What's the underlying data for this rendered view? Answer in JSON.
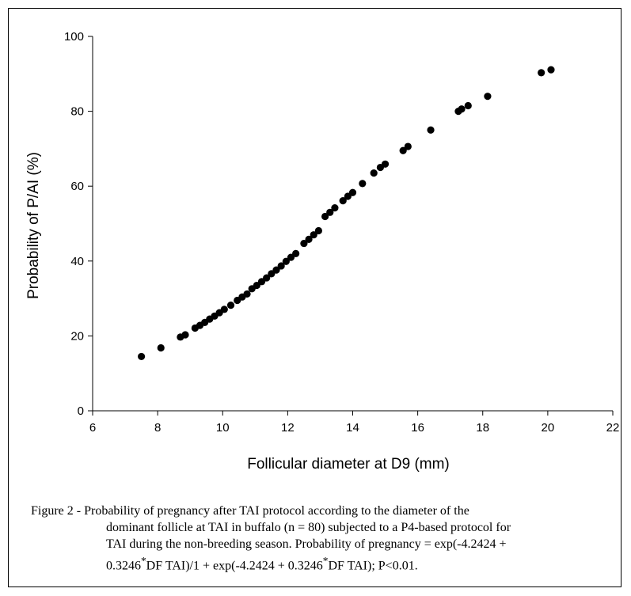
{
  "chart_data": {
    "type": "scatter",
    "title": "",
    "xlabel": "Follicular diameter at D9 (mm)",
    "ylabel": "Probability of P/AI (%)",
    "xlim": [
      6,
      22
    ],
    "ylim": [
      0,
      100
    ],
    "x_ticks": [
      6,
      8,
      10,
      12,
      14,
      16,
      18,
      20,
      22
    ],
    "y_ticks": [
      0,
      20,
      40,
      60,
      80,
      100
    ],
    "grid": false,
    "legend": "none",
    "marker_color": "#000000",
    "points": [
      {
        "x": 7.5,
        "y": 14.5
      },
      {
        "x": 8.1,
        "y": 16.8
      },
      {
        "x": 8.7,
        "y": 19.7
      },
      {
        "x": 8.85,
        "y": 20.3
      },
      {
        "x": 9.15,
        "y": 22.1
      },
      {
        "x": 9.3,
        "y": 22.8
      },
      {
        "x": 9.45,
        "y": 23.6
      },
      {
        "x": 9.6,
        "y": 24.5
      },
      {
        "x": 9.75,
        "y": 25.3
      },
      {
        "x": 9.9,
        "y": 26.2
      },
      {
        "x": 10.05,
        "y": 27.1
      },
      {
        "x": 10.25,
        "y": 28.2
      },
      {
        "x": 10.45,
        "y": 29.5
      },
      {
        "x": 10.6,
        "y": 30.4
      },
      {
        "x": 10.75,
        "y": 31.2
      },
      {
        "x": 10.9,
        "y": 32.6
      },
      {
        "x": 11.05,
        "y": 33.5
      },
      {
        "x": 11.2,
        "y": 34.5
      },
      {
        "x": 11.35,
        "y": 35.5
      },
      {
        "x": 11.5,
        "y": 36.6
      },
      {
        "x": 11.65,
        "y": 37.6
      },
      {
        "x": 11.8,
        "y": 38.7
      },
      {
        "x": 11.95,
        "y": 39.9
      },
      {
        "x": 12.1,
        "y": 41.0
      },
      {
        "x": 12.25,
        "y": 42.0
      },
      {
        "x": 12.5,
        "y": 44.7
      },
      {
        "x": 12.65,
        "y": 45.8
      },
      {
        "x": 12.8,
        "y": 47.0
      },
      {
        "x": 12.95,
        "y": 48.1
      },
      {
        "x": 13.15,
        "y": 51.9
      },
      {
        "x": 13.3,
        "y": 53.0
      },
      {
        "x": 13.45,
        "y": 54.2
      },
      {
        "x": 13.7,
        "y": 56.1
      },
      {
        "x": 13.85,
        "y": 57.3
      },
      {
        "x": 14.0,
        "y": 58.3
      },
      {
        "x": 14.3,
        "y": 60.7
      },
      {
        "x": 14.65,
        "y": 63.5
      },
      {
        "x": 14.85,
        "y": 65.0
      },
      {
        "x": 15.0,
        "y": 65.9
      },
      {
        "x": 15.55,
        "y": 69.5
      },
      {
        "x": 15.7,
        "y": 70.6
      },
      {
        "x": 16.4,
        "y": 75.0
      },
      {
        "x": 17.25,
        "y": 80.0
      },
      {
        "x": 17.35,
        "y": 80.6
      },
      {
        "x": 17.55,
        "y": 81.5
      },
      {
        "x": 18.15,
        "y": 84.0
      },
      {
        "x": 19.8,
        "y": 90.3
      },
      {
        "x": 20.1,
        "y": 91.1
      }
    ]
  },
  "caption": {
    "line1": "Figure 2 - Probability of pregnancy after TAI protocol according to the diameter of the",
    "line2": "dominant follicle at TAI in buffalo (n = 80) subjected to a P4-based protocol for",
    "line3": "TAI during the non-breeding season. Probability of pregnancy = exp(-4.2424 +",
    "line4_a": "0.3246",
    "line4_sup": "*",
    "line4_b": "DF TAI)/1 + exp(-4.2424 + 0.3246",
    "line4_sup2": "*",
    "line4_c": "DF TAI); P<0.01."
  }
}
